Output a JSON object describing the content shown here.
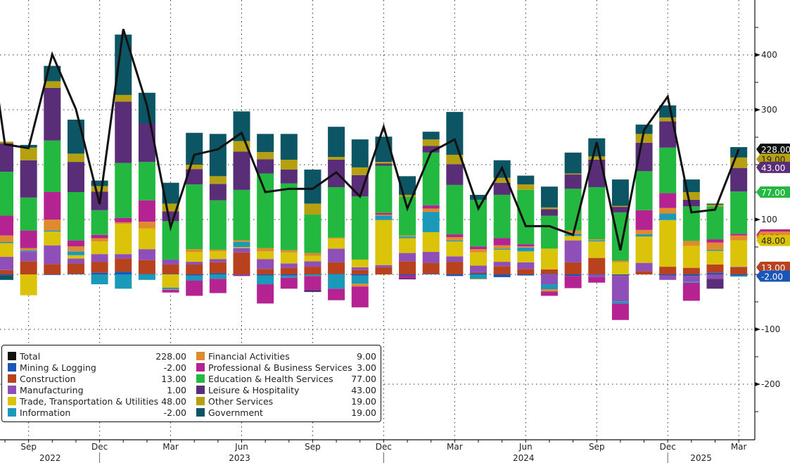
{
  "chart_data": {
    "type": "bar",
    "subtype": "stacked-bar-with-line",
    "title": "",
    "xlabel": "",
    "ylabel": "",
    "ylim": [
      -290,
      500
    ],
    "y_ticks": [
      400,
      300,
      100,
      -100,
      -200
    ],
    "y_tick_labels": [
      "400",
      "300",
      "100",
      "-100",
      "-200"
    ],
    "grid": true,
    "legend_position": "bottom-left",
    "x_month_labels": [
      {
        "label": "Sep",
        "index": 1
      },
      {
        "label": "Dec",
        "index": 4
      },
      {
        "label": "Mar",
        "index": 7
      },
      {
        "label": "Jun",
        "index": 10
      },
      {
        "label": "Sep",
        "index": 13
      },
      {
        "label": "Dec",
        "index": 16
      },
      {
        "label": "Mar",
        "index": 19
      },
      {
        "label": "Jun",
        "index": 22
      },
      {
        "label": "Sep",
        "index": 25
      },
      {
        "label": "Dec",
        "index": 28
      },
      {
        "label": "Mar",
        "index": 31
      }
    ],
    "x_year_labels": [
      {
        "label": "2022",
        "index": 2
      },
      {
        "label": "2023",
        "index": 10
      },
      {
        "label": "2024",
        "index": 22
      },
      {
        "label": "2025",
        "index": 29.5
      }
    ],
    "categories": [
      "Aug 2022",
      "Sep 2022",
      "Oct 2022",
      "Nov 2022",
      "Dec 2022",
      "Jan 2023",
      "Feb 2023",
      "Mar 2023",
      "Apr 2023",
      "May 2023",
      "Jun 2023",
      "Jul 2023",
      "Aug 2023",
      "Sep 2023",
      "Oct 2023",
      "Nov 2023",
      "Dec 2023",
      "Jan 2024",
      "Feb 2024",
      "Mar 2024",
      "Apr 2024",
      "May 2024",
      "Jun 2024",
      "Jul 2024",
      "Aug 2024",
      "Sep 2024",
      "Oct 2024",
      "Nov 2024",
      "Dec 2024",
      "Jan 2025",
      "Feb 2025",
      "Mar 2025"
    ],
    "total": [
      237,
      230,
      401,
      301,
      128,
      447,
      308,
      86,
      218,
      228,
      258,
      150,
      156,
      156,
      186,
      142,
      269,
      120,
      223,
      246,
      120,
      194,
      88,
      88,
      72,
      241,
      44,
      263,
      324,
      113,
      118,
      228
    ],
    "total_prev_start": 345,
    "series": [
      {
        "name": "Mining & Logging",
        "color": "#1a56b8",
        "values": [
          -2,
          0,
          -1,
          1,
          3,
          5,
          1,
          1,
          -2,
          2,
          -1,
          -2,
          -2,
          0,
          1,
          -2,
          0,
          -2,
          1,
          -3,
          2,
          -5,
          -2,
          1,
          -3,
          -1,
          -2,
          0,
          -2,
          -3,
          3,
          -2
        ]
      },
      {
        "name": "Construction",
        "color": "#b8421e",
        "values": [
          8,
          24,
          19,
          19,
          20,
          24,
          25,
          17,
          18,
          20,
          40,
          10,
          12,
          14,
          21,
          8,
          13,
          24,
          20,
          23,
          2,
          15,
          10,
          8,
          22,
          30,
          -1,
          6,
          14,
          12,
          15,
          13
        ]
      },
      {
        "name": "Manufacturing",
        "color": "#8e4fb8",
        "values": [
          24,
          18,
          34,
          9,
          14,
          8,
          20,
          9,
          5,
          6,
          8,
          18,
          8,
          10,
          25,
          5,
          4,
          15,
          20,
          10,
          12,
          8,
          12,
          -18,
          40,
          -4,
          -46,
          15,
          -8,
          -10,
          -8,
          1
        ]
      },
      {
        "name": "Trade, Transportation & Utilities",
        "color": "#dbc30a",
        "values": [
          25,
          -38,
          25,
          6,
          23,
          55,
          38,
          -24,
          18,
          14,
          2,
          14,
          20,
          10,
          18,
          14,
          82,
          27,
          36,
          27,
          24,
          22,
          20,
          38,
          8,
          30,
          22,
          48,
          85,
          40,
          25,
          48
        ]
      },
      {
        "name": "Information",
        "color": "#1a9ab8",
        "values": [
          2,
          2,
          2,
          7,
          -18,
          -26,
          -10,
          -3,
          -9,
          -8,
          9,
          -16,
          -4,
          -3,
          -26,
          -15,
          8,
          3,
          37,
          2,
          -8,
          2,
          7,
          -9,
          4,
          2,
          -4,
          4,
          12,
          -2,
          2,
          -2
        ]
      },
      {
        "name": "Financial Activities",
        "color": "#e08a2e",
        "values": [
          12,
          4,
          20,
          9,
          6,
          3,
          12,
          -1,
          5,
          3,
          3,
          6,
          4,
          5,
          2,
          -5,
          2,
          2,
          6,
          6,
          6,
          6,
          2,
          -4,
          6,
          2,
          3,
          8,
          10,
          9,
          13,
          9
        ]
      },
      {
        "name": "Professional & Business Services",
        "color": "#b52393",
        "values": [
          36,
          32,
          50,
          11,
          6,
          8,
          39,
          -5,
          -28,
          -26,
          -2,
          -35,
          -20,
          -25,
          -21,
          -38,
          3,
          -5,
          6,
          5,
          5,
          13,
          4,
          -8,
          -22,
          -10,
          -30,
          36,
          27,
          -33,
          6,
          3
        ]
      },
      {
        "name": "Education & Health Services",
        "color": "#23b840",
        "values": [
          80,
          60,
          94,
          88,
          45,
          100,
          70,
          70,
          118,
          90,
          92,
          136,
          122,
          70,
          92,
          115,
          86,
          70,
          96,
          90,
          85,
          79,
          99,
          60,
          76,
          95,
          88,
          71,
          83,
          63,
          60,
          77
        ]
      },
      {
        "name": "Leisure & Hospitality",
        "color": "#5a2d78",
        "values": [
          52,
          68,
          96,
          55,
          34,
          112,
          70,
          18,
          28,
          30,
          70,
          26,
          25,
          -4,
          50,
          39,
          4,
          -2,
          12,
          38,
          0,
          22,
          0,
          12,
          26,
          50,
          10,
          52,
          48,
          12,
          -18,
          43
        ]
      },
      {
        "name": "Other Services",
        "color": "#b5a012",
        "values": [
          3,
          23,
          12,
          15,
          10,
          12,
          0,
          14,
          8,
          14,
          19,
          13,
          18,
          20,
          5,
          14,
          3,
          4,
          12,
          17,
          -1,
          9,
          10,
          3,
          2,
          6,
          2,
          16,
          7,
          14,
          3,
          19
        ]
      },
      {
        "name": "Government",
        "color": "#0c5565",
        "values": [
          -8,
          5,
          28,
          62,
          10,
          110,
          56,
          38,
          58,
          77,
          54,
          33,
          47,
          62,
          55,
          51,
          46,
          34,
          14,
          78,
          9,
          32,
          16,
          38,
          38,
          33,
          48,
          17,
          22,
          23,
          2,
          19
        ]
      }
    ],
    "end_tags": [
      {
        "label": "228.00",
        "value": 228,
        "color": "#111111",
        "text_color": "#ffffff"
      },
      {
        "label": "19.00",
        "value": 210,
        "color": "#b5a012",
        "text_color": "#222222"
      },
      {
        "label": "43.00",
        "value": 195,
        "color": "#5a2d78",
        "text_color": "#ffffff"
      },
      {
        "label": "77.00",
        "value": 150,
        "color": "#23b840",
        "text_color": "#ffffff"
      },
      {
        "label": "3.00",
        "value": 72,
        "color": "#b52393",
        "text_color": "#222222"
      },
      {
        "label": "9.00",
        "value": 68,
        "color": "#e08a2e",
        "text_color": "#222222"
      },
      {
        "label": "48.00",
        "value": 62,
        "color": "#dbc30a",
        "text_color": "#222222"
      },
      {
        "label": "13.00",
        "value": 13,
        "color": "#b8421e",
        "text_color": "#ffffff"
      },
      {
        "label": "-2.00",
        "value": -3,
        "color": "#1a56b8",
        "text_color": "#ffffff"
      }
    ]
  },
  "legend": {
    "left": [
      {
        "name": "Total",
        "value": "228.00",
        "color": "#111111"
      },
      {
        "name": "Mining & Logging",
        "value": "-2.00",
        "color": "#1a56b8"
      },
      {
        "name": "Construction",
        "value": "13.00",
        "color": "#b8421e"
      },
      {
        "name": "Manufacturing",
        "value": "1.00",
        "color": "#8e4fb8"
      },
      {
        "name": "Trade, Transportation & Utilities",
        "value": "48.00",
        "color": "#dbc30a"
      },
      {
        "name": "Information",
        "value": "-2.00",
        "color": "#1a9ab8"
      }
    ],
    "right": [
      {
        "name": "Financial Activities",
        "value": "9.00",
        "color": "#e08a2e"
      },
      {
        "name": "Professional & Business Services",
        "value": "3.00",
        "color": "#b52393"
      },
      {
        "name": "Education & Health Services",
        "value": "77.00",
        "color": "#23b840"
      },
      {
        "name": "Leisure & Hospitality",
        "value": "43.00",
        "color": "#5a2d78"
      },
      {
        "name": "Other Services",
        "value": "19.00",
        "color": "#b5a012"
      },
      {
        "name": "Government",
        "value": "19.00",
        "color": "#0c5565"
      }
    ]
  }
}
